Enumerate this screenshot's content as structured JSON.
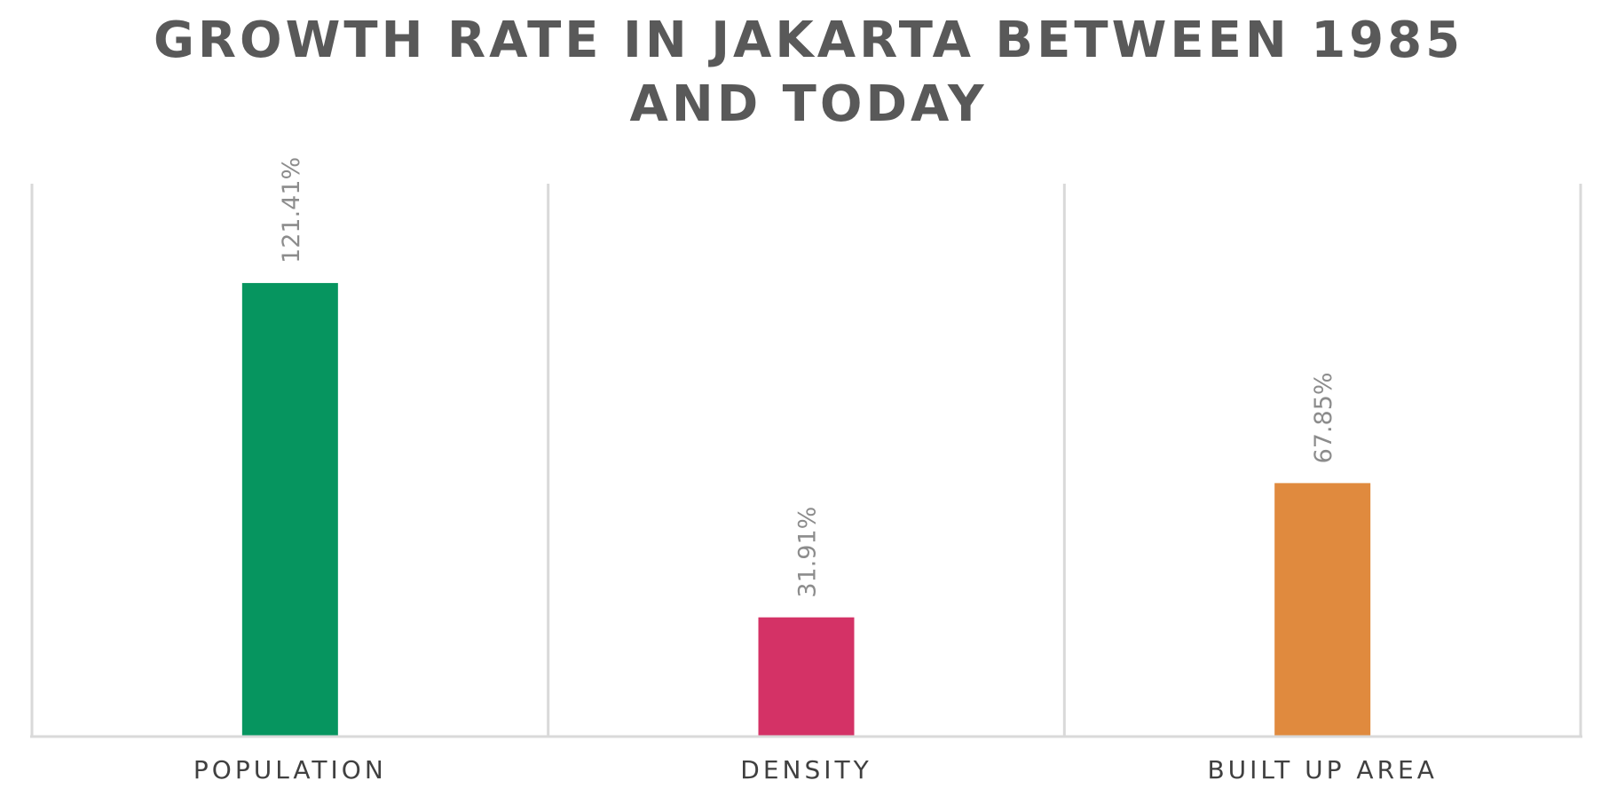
{
  "chart_data": {
    "type": "bar",
    "title": [
      "GROWTH RATE IN JAKARTA BETWEEN 1985",
      "AND TODAY"
    ],
    "categories": [
      "POPULATION",
      "DENSITY",
      "BUILT UP AREA"
    ],
    "values": [
      121.41,
      31.91,
      67.85
    ],
    "data_labels": [
      "121.41%",
      "31.91%",
      "67.85%"
    ],
    "colors": [
      "#06955f",
      "#d43266",
      "#e08a3e"
    ],
    "value_unit": "%",
    "ylim": [
      0,
      148
    ],
    "y_axis_visible": false,
    "grid": "vertical category separators",
    "legend": "none",
    "axis_color": "#d9d9d9"
  }
}
